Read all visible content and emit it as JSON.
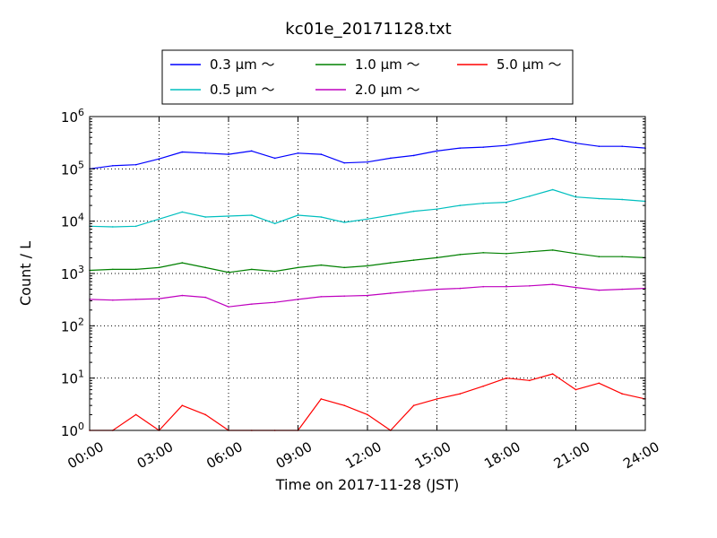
{
  "chart_data": {
    "type": "line",
    "title": "kc01e_20171128.txt",
    "xlabel": "Time on 2017-11-28 (JST)",
    "ylabel": "Count / L",
    "yscale": "log",
    "ylim": [
      1,
      1000000
    ],
    "xlim": [
      "00:00",
      "24:00"
    ],
    "x_tick_labels": [
      "00:00",
      "03:00",
      "06:00",
      "09:00",
      "12:00",
      "15:00",
      "18:00",
      "21:00",
      "24:00"
    ],
    "y_tick_labels": [
      {
        "base": "10",
        "exp": "0"
      },
      {
        "base": "10",
        "exp": "1"
      },
      {
        "base": "10",
        "exp": "2"
      },
      {
        "base": "10",
        "exp": "3"
      },
      {
        "base": "10",
        "exp": "4"
      },
      {
        "base": "10",
        "exp": "5"
      },
      {
        "base": "10",
        "exp": "6"
      }
    ],
    "grid": true,
    "legend_position": "top",
    "x": [
      "00:00",
      "01:00",
      "02:00",
      "03:00",
      "04:00",
      "05:00",
      "06:00",
      "07:00",
      "08:00",
      "09:00",
      "10:00",
      "11:00",
      "12:00",
      "13:00",
      "14:00",
      "15:00",
      "16:00",
      "17:00",
      "18:00",
      "19:00",
      "20:00",
      "21:00",
      "22:00",
      "23:00",
      "24:00"
    ],
    "series": [
      {
        "name": "0.3 μm ～",
        "color": "#0000ff",
        "values": [
          100000,
          115000,
          120000,
          155000,
          210000,
          200000,
          190000,
          220000,
          160000,
          200000,
          190000,
          130000,
          135000,
          160000,
          180000,
          220000,
          250000,
          260000,
          280000,
          330000,
          380000,
          310000,
          270000,
          270000,
          250000
        ]
      },
      {
        "name": "0.5 μm ～",
        "color": "#00bfbf",
        "values": [
          8000,
          7800,
          8000,
          11000,
          15000,
          12000,
          12500,
          13000,
          9000,
          13000,
          12000,
          9500,
          11000,
          13000,
          15500,
          17000,
          20000,
          22000,
          23000,
          30000,
          40000,
          29000,
          27000,
          26000,
          24000
        ]
      },
      {
        "name": "1.0 μm ～",
        "color": "#008000",
        "values": [
          1150,
          1200,
          1200,
          1300,
          1600,
          1300,
          1050,
          1200,
          1100,
          1300,
          1450,
          1300,
          1400,
          1600,
          1800,
          2000,
          2300,
          2500,
          2400,
          2600,
          2800,
          2400,
          2100,
          2100,
          2000
        ]
      },
      {
        "name": "2.0 μm ～",
        "color": "#bf00bf",
        "values": [
          320,
          310,
          320,
          330,
          380,
          350,
          230,
          260,
          280,
          320,
          360,
          370,
          380,
          420,
          460,
          500,
          520,
          560,
          560,
          580,
          620,
          540,
          480,
          500,
          520
        ]
      },
      {
        "name": "5.0 μm ～",
        "color": "#ff0000",
        "values": [
          1,
          1,
          2,
          1,
          3,
          2,
          1,
          1,
          1,
          1,
          4,
          3,
          2,
          1,
          3,
          4,
          5,
          7,
          10,
          9,
          12,
          6,
          8,
          5,
          4
        ]
      }
    ]
  }
}
